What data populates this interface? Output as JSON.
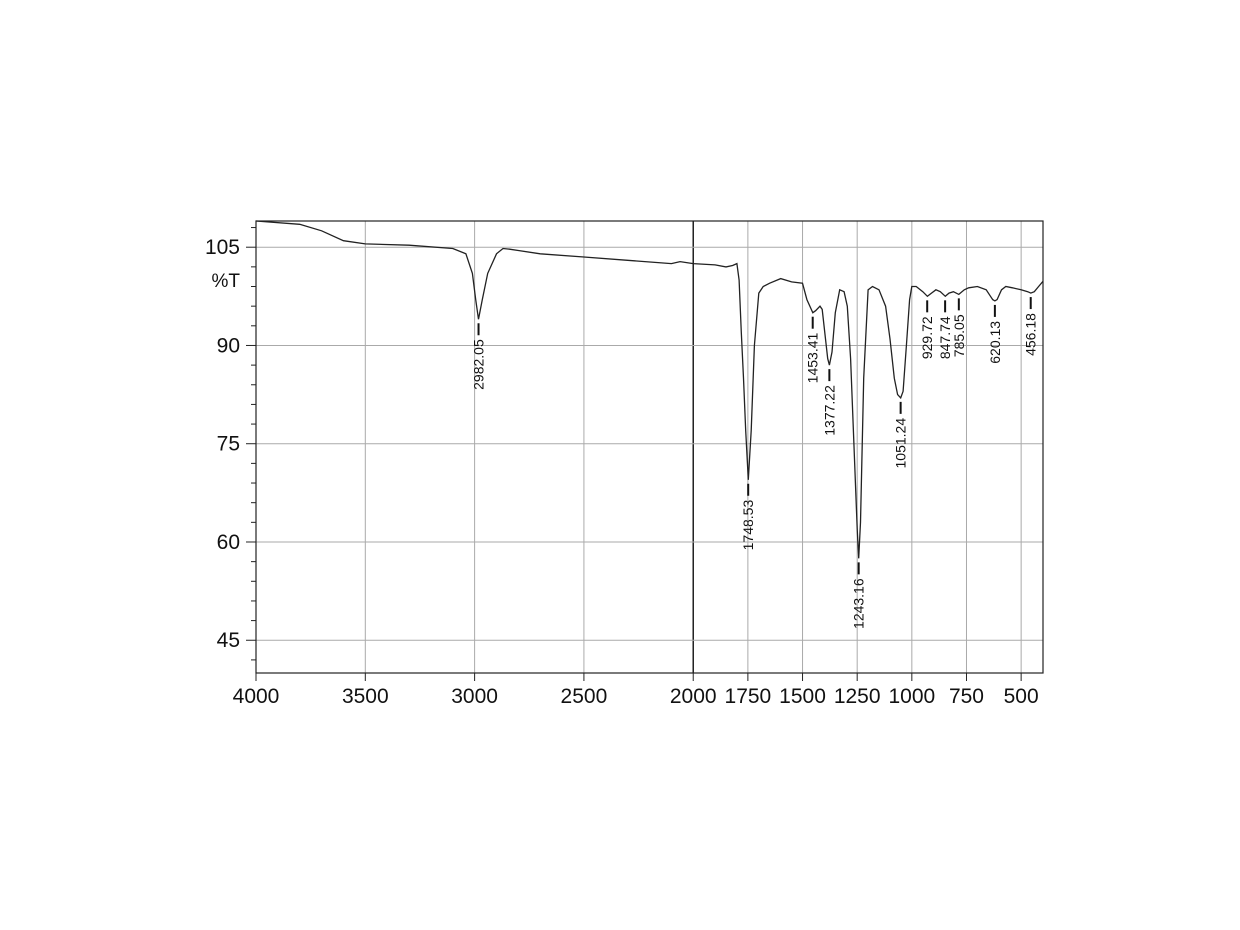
{
  "chart_data": {
    "type": "line",
    "title": "",
    "xlabel": "",
    "ylabel": "%T",
    "xlim": [
      4000,
      400
    ],
    "ylim": [
      40,
      109
    ],
    "grid": true,
    "x_ticks": [
      4000,
      3500,
      3000,
      2500,
      2000,
      1750,
      1500,
      1250,
      1000,
      750,
      500
    ],
    "x_tick_labels": [
      "4000",
      "3500",
      "3000",
      "2500",
      "2000",
      "1750",
      "1500",
      "1250",
      "1000",
      "750",
      "500"
    ],
    "y_ticks": [
      105,
      90,
      75,
      60,
      45
    ],
    "y_tick_labels": [
      "105",
      "90",
      "75",
      "60",
      "45"
    ],
    "series": [
      {
        "x": [
          4000,
          3800,
          3700,
          3600,
          3500,
          3300,
          3100,
          3040,
          3010,
          2995,
          2982,
          2965,
          2940,
          2900,
          2870,
          2840,
          2800,
          2700,
          2500,
          2300,
          2100,
          2060,
          2000,
          1900,
          1850,
          1820,
          1800,
          1790,
          1780,
          1770,
          1760,
          1748,
          1735,
          1720,
          1700,
          1680,
          1650,
          1600,
          1550,
          1500,
          1480,
          1460,
          1453,
          1440,
          1420,
          1410,
          1395,
          1385,
          1377,
          1365,
          1350,
          1330,
          1310,
          1295,
          1280,
          1265,
          1250,
          1243,
          1235,
          1220,
          1200,
          1180,
          1150,
          1120,
          1100,
          1080,
          1065,
          1051,
          1040,
          1025,
          1010,
          1000,
          980,
          950,
          929,
          910,
          890,
          870,
          847,
          830,
          810,
          785,
          760,
          740,
          700,
          660,
          640,
          630,
          620,
          610,
          590,
          570,
          540,
          500,
          470,
          456,
          440,
          420,
          400
        ],
        "y": [
          109,
          108.5,
          107.5,
          106,
          105.5,
          105.3,
          104.8,
          104,
          101,
          97,
          94,
          97,
          101,
          104,
          104.8,
          104.7,
          104.5,
          104,
          103.5,
          103,
          102.5,
          102.8,
          102.5,
          102.3,
          102,
          102.2,
          102.5,
          100,
          92,
          85,
          77,
          69.5,
          77,
          90,
          98,
          99,
          99.5,
          100.2,
          99.7,
          99.5,
          97,
          95.5,
          95,
          95.3,
          96,
          95.5,
          91,
          88,
          87,
          89,
          95,
          98.5,
          98.2,
          96,
          88,
          75,
          62,
          57.5,
          63,
          85,
          98.5,
          99,
          98.5,
          96,
          91,
          85,
          82.5,
          82,
          83,
          90,
          97,
          99,
          99,
          98.2,
          97.5,
          98,
          98.5,
          98.2,
          97.5,
          98,
          98.2,
          97.8,
          98.5,
          98.8,
          99,
          98.5,
          97.5,
          97,
          96.8,
          97,
          98.5,
          99,
          98.8,
          98.5,
          98.2,
          98,
          98.2,
          99,
          99.8
        ]
      }
    ],
    "peaks": [
      {
        "x": 2982.05,
        "y": 94,
        "label": "2982.05",
        "side": "below"
      },
      {
        "x": 1748.53,
        "y": 69.5,
        "label": "1748.53",
        "side": "below"
      },
      {
        "x": 1453.41,
        "y": 95,
        "label": "1453.41",
        "side": "below"
      },
      {
        "x": 1377.22,
        "y": 87,
        "label": "1377.22",
        "side": "below"
      },
      {
        "x": 1243.16,
        "y": 57.5,
        "label": "1243.16",
        "side": "below"
      },
      {
        "x": 1051.24,
        "y": 82,
        "label": "1051.24",
        "side": "below"
      },
      {
        "x": 929.72,
        "y": 97.5,
        "label": "929.72",
        "side": "below"
      },
      {
        "x": 847.74,
        "y": 97.5,
        "label": "847.74",
        "side": "below"
      },
      {
        "x": 785.05,
        "y": 97.8,
        "label": "785.05",
        "side": "below"
      },
      {
        "x": 620.13,
        "y": 96.8,
        "label": "620.13",
        "side": "below"
      },
      {
        "x": 456.18,
        "y": 98,
        "label": "456.18",
        "side": "below"
      }
    ]
  }
}
